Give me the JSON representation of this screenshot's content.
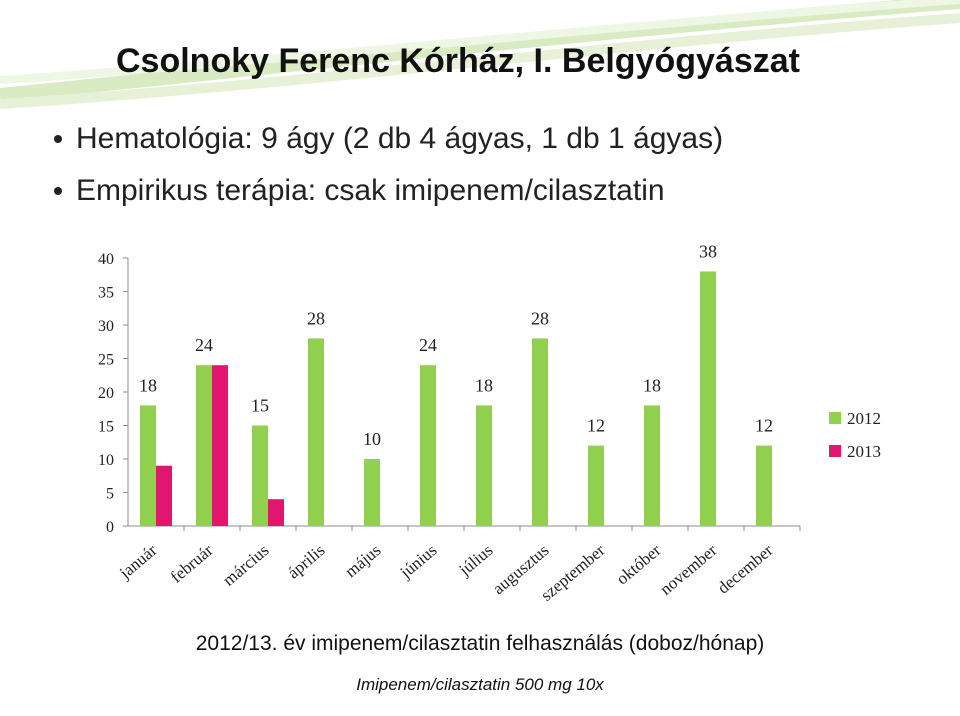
{
  "title": "Csolnoky  Ferenc Kórház, I. Belgyógyászat",
  "bullets": [
    "Hematológia: 9 ágy (2 db 4 ágyas, 1 db 1 ágyas)",
    "Empirikus terápia: csak imipenem/cilasztatin"
  ],
  "caption": "2012/13. év imipenem/cilasztatin felhasználás (doboz/hónap)",
  "subcaption": "Imipenem/cilasztatin 500 mg 10x",
  "colors": {
    "series2012": "#92d050",
    "series2013": "#e3166f",
    "title_deco": "#c9e3a4"
  },
  "chart_data": {
    "type": "bar",
    "categories": [
      "január",
      "február",
      "március",
      "április",
      "május",
      "június",
      "július",
      "augusztus",
      "szeptember",
      "október",
      "november",
      "december"
    ],
    "series": [
      {
        "name": "2012",
        "values": [
          18,
          24,
          15,
          28,
          10,
          24,
          18,
          28,
          12,
          18,
          38,
          12
        ],
        "labels": [
          "18",
          "24",
          "15",
          "28",
          "10",
          "24",
          "18",
          "28",
          "12",
          "18",
          "38",
          "12"
        ]
      },
      {
        "name": "2013",
        "values": [
          9,
          24,
          4,
          null,
          null,
          null,
          null,
          null,
          null,
          null,
          null,
          null
        ]
      }
    ],
    "ylim": [
      0,
      40
    ],
    "yticks": [
      "0",
      "5",
      "10",
      "15",
      "20",
      "25",
      "30",
      "35",
      "40"
    ],
    "grid": false,
    "legend_position": "right"
  }
}
